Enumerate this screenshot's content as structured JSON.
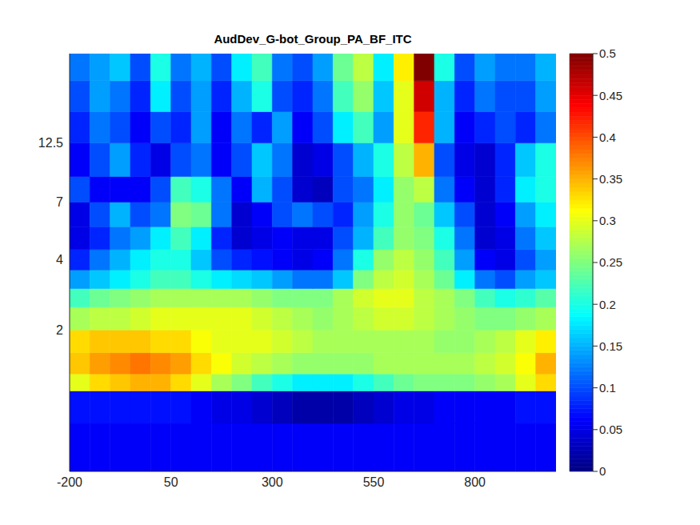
{
  "chart_data": {
    "type": "heatmap",
    "title": "AudDev_G-bot_Group_PA_BF_ITC",
    "x_bins": [
      -200,
      -150,
      -100,
      -50,
      0,
      50,
      100,
      150,
      200,
      250,
      300,
      350,
      400,
      450,
      500,
      550,
      600,
      650,
      700,
      750,
      800,
      850,
      900,
      950,
      1000
    ],
    "y_bins": [
      0.5,
      0.8,
      1.1,
      1.3,
      1.6,
      2,
      2.5,
      3,
      3.6,
      4.4,
      5.5,
      7,
      9,
      12.5,
      17,
      23,
      30
    ],
    "values": [
      [
        0.06,
        0.06,
        0.06,
        0.06,
        0.06,
        0.06,
        0.06,
        0.06,
        0.06,
        0.06,
        0.06,
        0.06,
        0.06,
        0.06,
        0.06,
        0.06,
        0.06,
        0.06,
        0.06,
        0.06,
        0.06,
        0.06,
        0.06,
        0.06
      ],
      [
        0.07,
        0.07,
        0.07,
        0.07,
        0.07,
        0.07,
        0.06,
        0.05,
        0.05,
        0.04,
        0.03,
        0.02,
        0.02,
        0.02,
        0.03,
        0.04,
        0.05,
        0.05,
        0.06,
        0.06,
        0.06,
        0.06,
        0.07,
        0.07
      ],
      [
        0.3,
        0.33,
        0.34,
        0.35,
        0.35,
        0.33,
        0.3,
        0.27,
        0.25,
        0.22,
        0.2,
        0.18,
        0.18,
        0.18,
        0.2,
        0.22,
        0.24,
        0.25,
        0.25,
        0.25,
        0.26,
        0.27,
        0.3,
        0.33
      ],
      [
        0.34,
        0.36,
        0.37,
        0.38,
        0.37,
        0.36,
        0.33,
        0.31,
        0.29,
        0.28,
        0.27,
        0.26,
        0.26,
        0.26,
        0.26,
        0.27,
        0.27,
        0.27,
        0.27,
        0.27,
        0.28,
        0.29,
        0.31,
        0.35
      ],
      [
        0.33,
        0.34,
        0.34,
        0.34,
        0.33,
        0.33,
        0.31,
        0.3,
        0.3,
        0.3,
        0.29,
        0.28,
        0.27,
        0.27,
        0.27,
        0.27,
        0.27,
        0.27,
        0.26,
        0.26,
        0.27,
        0.28,
        0.3,
        0.32
      ],
      [
        0.27,
        0.28,
        0.28,
        0.29,
        0.3,
        0.3,
        0.3,
        0.3,
        0.3,
        0.29,
        0.28,
        0.27,
        0.26,
        0.27,
        0.28,
        0.29,
        0.29,
        0.28,
        0.27,
        0.26,
        0.25,
        0.25,
        0.26,
        0.27
      ],
      [
        0.22,
        0.24,
        0.25,
        0.26,
        0.27,
        0.27,
        0.27,
        0.27,
        0.27,
        0.26,
        0.25,
        0.25,
        0.25,
        0.27,
        0.29,
        0.3,
        0.3,
        0.28,
        0.27,
        0.25,
        0.22,
        0.2,
        0.21,
        0.23
      ],
      [
        0.14,
        0.16,
        0.18,
        0.2,
        0.22,
        0.22,
        0.2,
        0.18,
        0.17,
        0.16,
        0.14,
        0.12,
        0.12,
        0.16,
        0.25,
        0.28,
        0.29,
        0.27,
        0.24,
        0.18,
        0.12,
        0.1,
        0.14,
        0.16
      ],
      [
        0.08,
        0.12,
        0.15,
        0.18,
        0.2,
        0.2,
        0.16,
        0.1,
        0.08,
        0.07,
        0.06,
        0.05,
        0.06,
        0.12,
        0.2,
        0.26,
        0.28,
        0.26,
        0.22,
        0.14,
        0.06,
        0.05,
        0.1,
        0.14
      ],
      [
        0.05,
        0.08,
        0.12,
        0.14,
        0.18,
        0.22,
        0.18,
        0.08,
        0.04,
        0.05,
        0.06,
        0.05,
        0.05,
        0.1,
        0.15,
        0.22,
        0.26,
        0.25,
        0.2,
        0.12,
        0.04,
        0.05,
        0.12,
        0.16
      ],
      [
        0.05,
        0.1,
        0.15,
        0.1,
        0.12,
        0.25,
        0.24,
        0.12,
        0.04,
        0.06,
        0.1,
        0.12,
        0.1,
        0.08,
        0.14,
        0.2,
        0.26,
        0.24,
        0.16,
        0.1,
        0.04,
        0.06,
        0.14,
        0.18
      ],
      [
        0.1,
        0.06,
        0.06,
        0.06,
        0.1,
        0.22,
        0.2,
        0.12,
        0.06,
        0.15,
        0.1,
        0.04,
        0.03,
        0.1,
        0.12,
        0.18,
        0.26,
        0.28,
        0.12,
        0.06,
        0.04,
        0.08,
        0.18,
        0.2
      ],
      [
        0.06,
        0.1,
        0.14,
        0.08,
        0.05,
        0.1,
        0.12,
        0.06,
        0.1,
        0.16,
        0.12,
        0.04,
        0.05,
        0.1,
        0.15,
        0.2,
        0.28,
        0.35,
        0.1,
        0.05,
        0.04,
        0.08,
        0.16,
        0.2
      ],
      [
        0.08,
        0.12,
        0.1,
        0.06,
        0.1,
        0.08,
        0.14,
        0.06,
        0.12,
        0.08,
        0.14,
        0.06,
        0.1,
        0.18,
        0.22,
        0.14,
        0.3,
        0.42,
        0.15,
        0.06,
        0.08,
        0.1,
        0.08,
        0.12
      ],
      [
        0.1,
        0.14,
        0.12,
        0.08,
        0.18,
        0.1,
        0.14,
        0.08,
        0.15,
        0.2,
        0.1,
        0.08,
        0.12,
        0.22,
        0.26,
        0.16,
        0.3,
        0.46,
        0.15,
        0.08,
        0.12,
        0.1,
        0.1,
        0.14
      ],
      [
        0.12,
        0.14,
        0.16,
        0.1,
        0.2,
        0.12,
        0.15,
        0.1,
        0.18,
        0.22,
        0.12,
        0.1,
        0.14,
        0.24,
        0.28,
        0.18,
        0.32,
        0.5,
        0.2,
        0.1,
        0.14,
        0.12,
        0.12,
        0.15
      ]
    ],
    "xlim": [
      -200,
      1000
    ],
    "xticks": [
      -200,
      50,
      300,
      550,
      800
    ],
    "ylim": [
      0.5,
      30
    ],
    "yticks": [
      2,
      4,
      7,
      12.5
    ],
    "log": "y",
    "colorbar_range": [
      0,
      0.5
    ],
    "colorbar_ticks": [
      0,
      0.05,
      0.1,
      0.15,
      0.2,
      0.25,
      0.3,
      0.35,
      0.4,
      0.45,
      0.5
    ]
  }
}
